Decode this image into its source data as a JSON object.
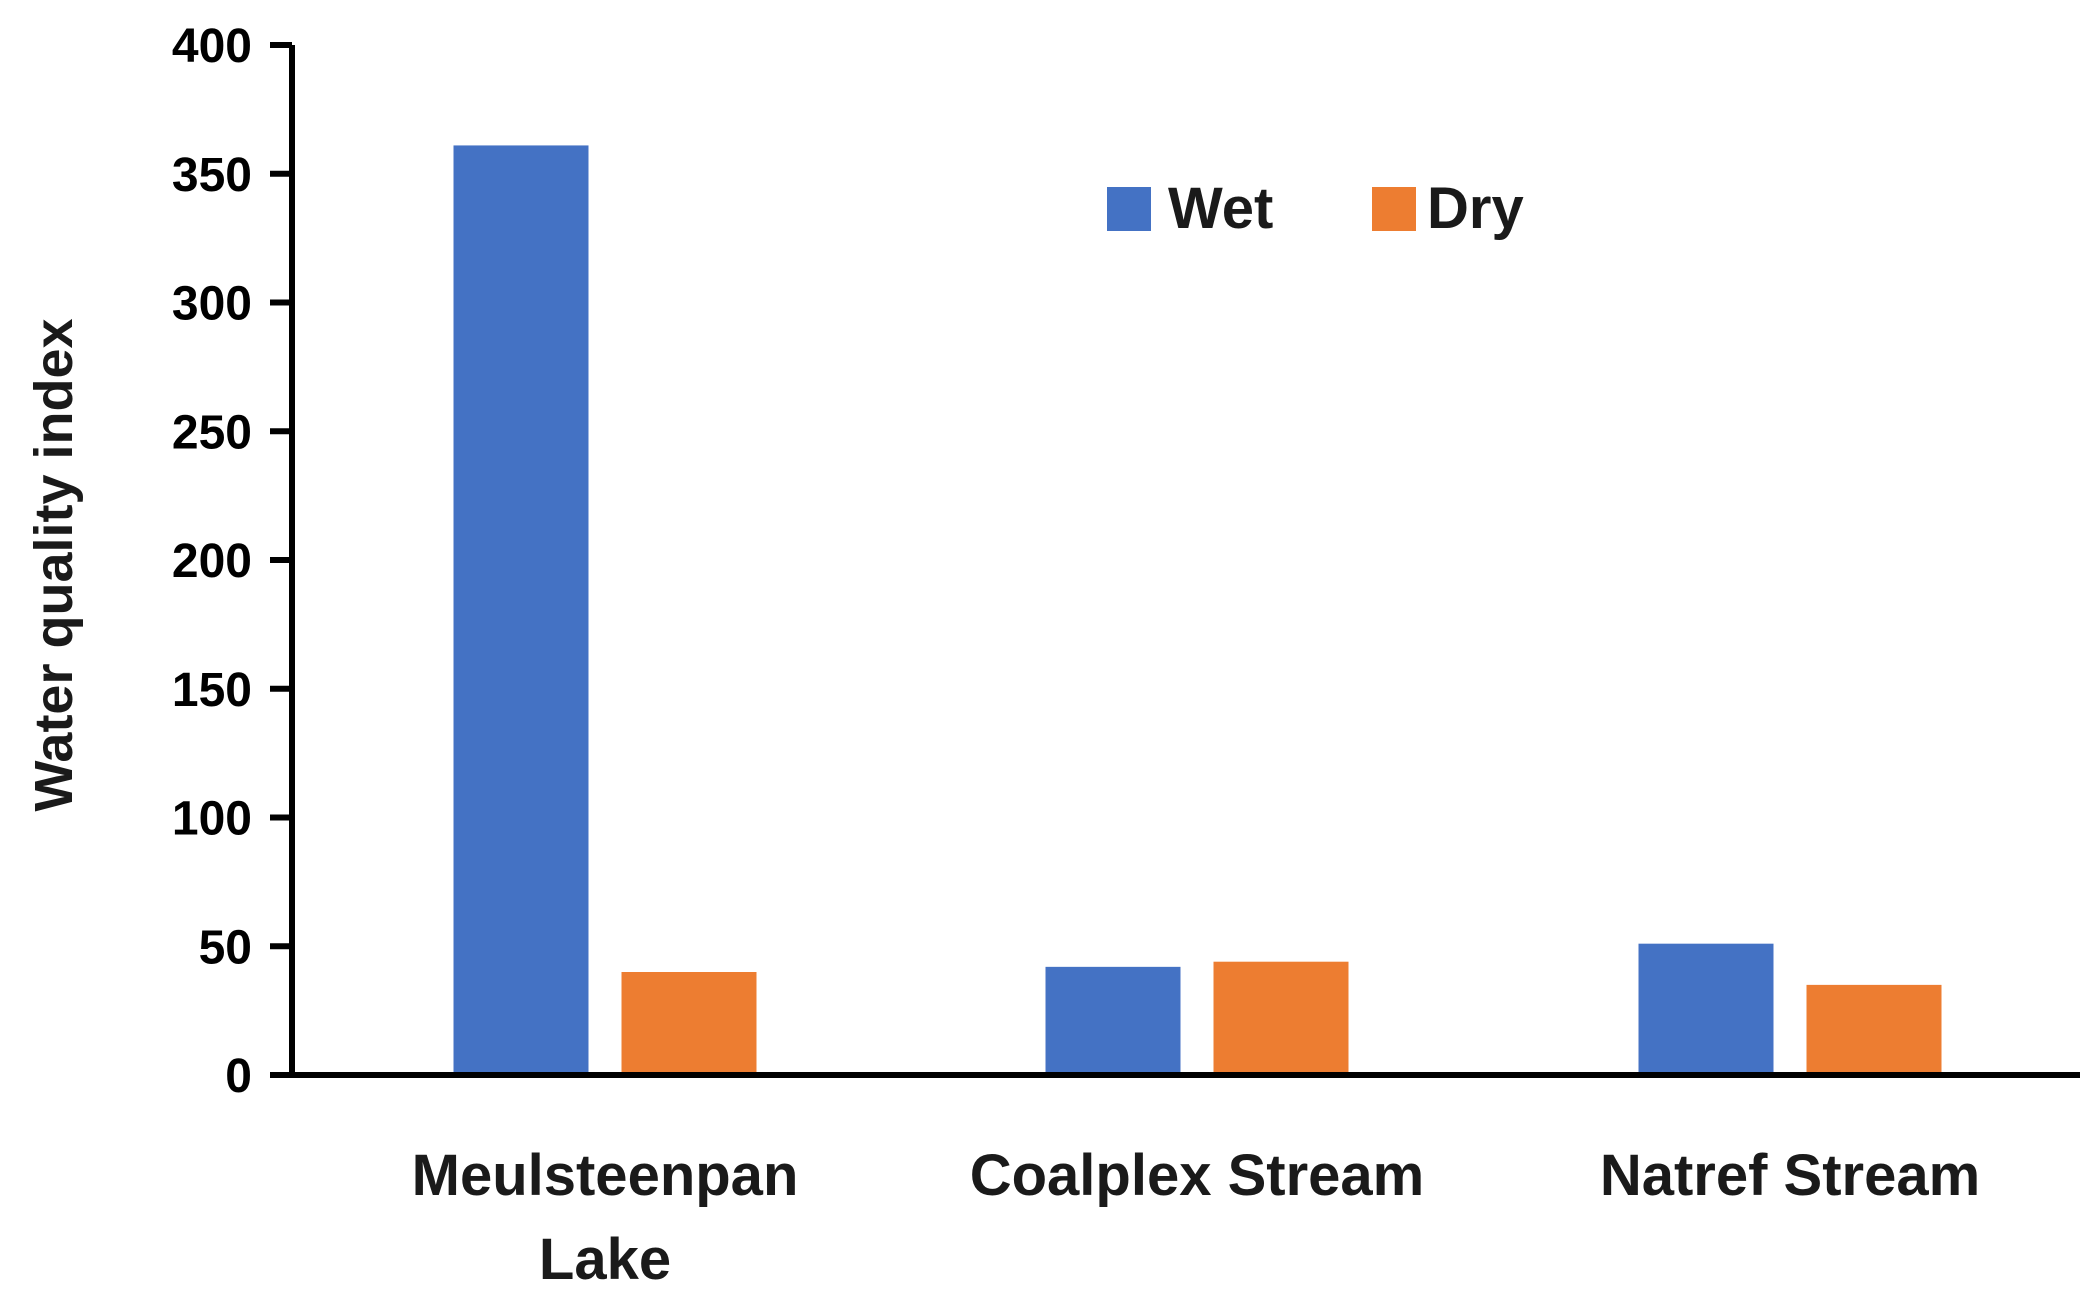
{
  "chart_data": {
    "type": "bar",
    "title": "",
    "xlabel": "",
    "ylabel": "Water quality index",
    "ylim": [
      0,
      400
    ],
    "yticks": [
      0,
      50,
      100,
      150,
      200,
      250,
      300,
      350,
      400
    ],
    "categories": [
      [
        "Meulsteenpan",
        "Lake"
      ],
      [
        "Coalplex Stream"
      ],
      [
        "Natref Stream"
      ]
    ],
    "series": [
      {
        "name": "Wet",
        "color": "#4472C4",
        "values": [
          361,
          42,
          51
        ]
      },
      {
        "name": "Dry",
        "color": "#ED7D31",
        "values": [
          40,
          44,
          35
        ]
      }
    ],
    "legend": {
      "position": "top-right",
      "orientation": "horizontal"
    },
    "grid": false
  }
}
